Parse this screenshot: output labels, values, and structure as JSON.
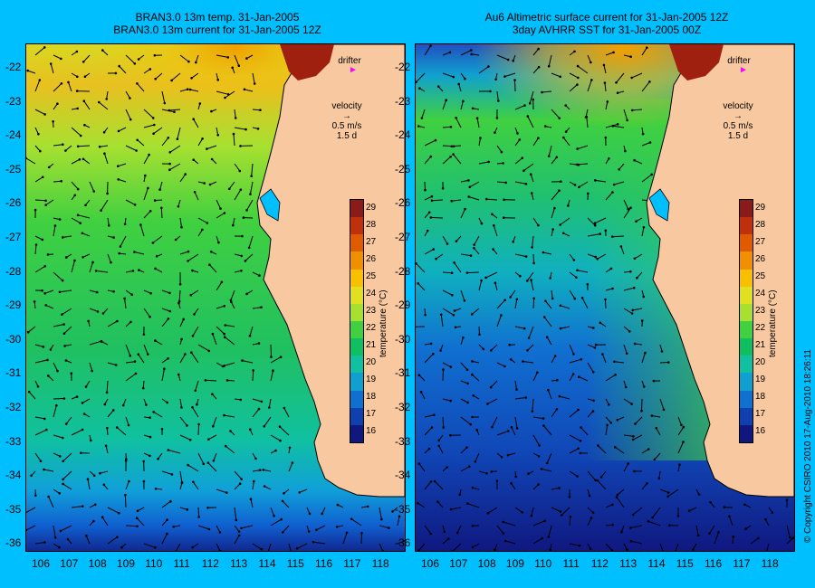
{
  "left_panel": {
    "title_line1": "BRAN3.0 13m temp. 31-Jan-2005",
    "title_line2": "BRAN3.0 13m current for 31-Jan-2005 12Z"
  },
  "right_panel": {
    "title_line1": "Au6 Altimetric surface current for 31-Jan-2005 12Z",
    "title_line2": "3day AVHRR SST for 31-Jan-2005 00Z"
  },
  "legend": {
    "drifter_label": "drifter",
    "velocity_label": "velocity",
    "velocity_scale": "0.5 m/s",
    "velocity_days": "1.5 d"
  },
  "lat_labels": [
    "-22",
    "-23",
    "-24",
    "-25",
    "-26",
    "-27",
    "-28",
    "-29",
    "-30",
    "-31",
    "-32",
    "-33",
    "-34",
    "-35",
    "-36"
  ],
  "lon_labels": [
    "106",
    "107",
    "108",
    "109",
    "110",
    "111",
    "112",
    "113",
    "114",
    "115",
    "116",
    "117",
    "118"
  ],
  "colorbar": {
    "ticks": [
      "29",
      "28",
      "27",
      "26",
      "25",
      "24",
      "23",
      "22",
      "21",
      "20",
      "19",
      "18",
      "17",
      "16"
    ],
    "label": "temperature (°C)",
    "colors": [
      "#8b1a1a",
      "#c1300c",
      "#e05a00",
      "#f09000",
      "#f8c000",
      "#e0e020",
      "#a8e030",
      "#40d040",
      "#10c060",
      "#10c0a0",
      "#10a0d0",
      "#1070d0",
      "#1040b0",
      "#101880"
    ]
  },
  "copyright": "© Copyright CSIRO 2010   17-Aug-2010 18:26:11",
  "colors": {
    "background": "#00bfff",
    "land": "#f8c8a0",
    "drifter": "#ff00ff"
  }
}
